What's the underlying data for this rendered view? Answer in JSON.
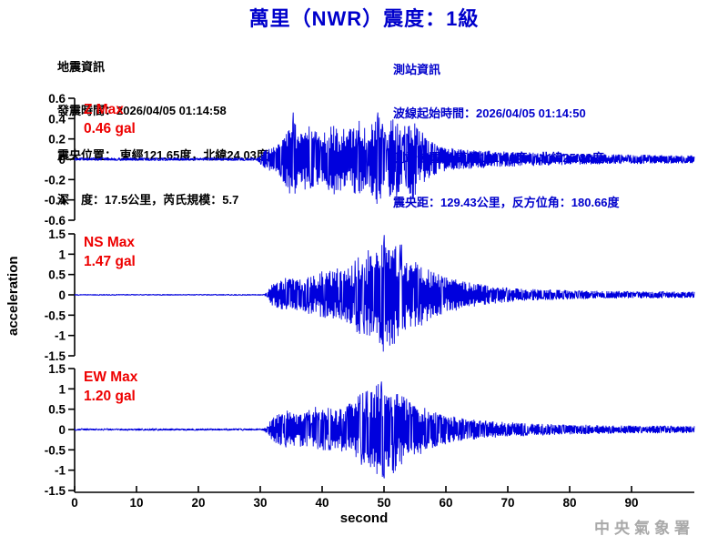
{
  "title": "萬里（NWR）震度：1級",
  "earthquake_info": {
    "heading": "地震資訊",
    "origin_time": "發震時間：2026/04/05 01:14:58",
    "epicenter": "震央位置： 東經121.65度，北緯24.03度",
    "depth_magnitude": "深　度：17.5公里，芮氏規模：5.7"
  },
  "station_info": {
    "heading": "測站資訊",
    "wave_start_time": "波線起始時間：2026/04/05 01:14:50",
    "station_location": "測站位置： 東經121.66度，北緯25.20度",
    "epicentral_distance": "震央距：129.43公里，反方位角：180.66度"
  },
  "watermark": "中央氣象署",
  "colors": {
    "accent_blue": "#0000CC",
    "trace_blue": "#0000DD",
    "label_red": "#EE0000",
    "axis_black": "#000000",
    "watermark_gray": "#A9A9A9"
  },
  "chart_data": {
    "type": "line",
    "title": "萬里（NWR）震度：1級",
    "xlabel": "second",
    "ylabel": "acceleration",
    "x_range": [
      0,
      100
    ],
    "x_ticks": [
      0,
      10,
      20,
      30,
      40,
      50,
      60,
      70,
      80,
      90
    ],
    "grid": false,
    "panels": [
      {
        "channel": "Z",
        "max_label": "Z Max",
        "max_value": "0.46 gal",
        "peak_gal": 0.46,
        "ylim": [
          -0.6,
          0.6
        ],
        "y_ticks": [
          0.6,
          0.4,
          0.2,
          0,
          -0.2,
          -0.4,
          -0.6
        ],
        "onset_s": 30,
        "forced_peaks": [
          [
            35.3,
            1
          ],
          [
            49,
            1
          ],
          [
            52,
            -1
          ]
        ],
        "envelope": [
          [
            0,
            0.015
          ],
          [
            29.5,
            0.015
          ],
          [
            30,
            0.05
          ],
          [
            31,
            0.1
          ],
          [
            33,
            0.15
          ],
          [
            34.5,
            0.3
          ],
          [
            35.3,
            0.46
          ],
          [
            36,
            0.25
          ],
          [
            38,
            0.33
          ],
          [
            40,
            0.25
          ],
          [
            42,
            0.35
          ],
          [
            44,
            0.28
          ],
          [
            46,
            0.38
          ],
          [
            47.5,
            0.3
          ],
          [
            49,
            0.46
          ],
          [
            50,
            0.32
          ],
          [
            51.5,
            0.4
          ],
          [
            53,
            0.3
          ],
          [
            54.5,
            0.42
          ],
          [
            56,
            0.28
          ],
          [
            57.5,
            0.18
          ],
          [
            59,
            0.13
          ],
          [
            62,
            0.1
          ],
          [
            66,
            0.09
          ],
          [
            70,
            0.075
          ],
          [
            75,
            0.065
          ],
          [
            80,
            0.055
          ],
          [
            86,
            0.05
          ],
          [
            93,
            0.045
          ],
          [
            100,
            0.04
          ]
        ]
      },
      {
        "channel": "NS",
        "max_label": "NS Max",
        "max_value": "1.47 gal",
        "peak_gal": 1.47,
        "ylim": [
          -1.5,
          1.5
        ],
        "y_ticks": [
          1.5,
          1,
          0.5,
          0,
          -0.5,
          -1,
          -1.5
        ],
        "onset_s": 31,
        "forced_peaks": [
          [
            50,
            1
          ],
          [
            50.9,
            -1
          ]
        ],
        "envelope": [
          [
            0,
            0.015
          ],
          [
            30.5,
            0.015
          ],
          [
            31,
            0.06
          ],
          [
            31.5,
            0.18
          ],
          [
            32,
            0.3
          ],
          [
            33,
            0.35
          ],
          [
            34,
            0.42
          ],
          [
            35,
            0.38
          ],
          [
            36,
            0.45
          ],
          [
            37,
            0.4
          ],
          [
            38,
            0.5
          ],
          [
            39,
            0.45
          ],
          [
            40,
            0.6
          ],
          [
            41,
            0.55
          ],
          [
            42,
            0.7
          ],
          [
            43,
            0.6
          ],
          [
            44,
            0.68
          ],
          [
            45,
            0.75
          ],
          [
            46,
            1.05
          ],
          [
            46.5,
            0.9
          ],
          [
            47,
            1.1
          ],
          [
            48,
            1.3
          ],
          [
            48.5,
            1.05
          ],
          [
            49,
            1.2
          ],
          [
            50,
            1.47
          ],
          [
            50.6,
            1.1
          ],
          [
            51.2,
            1.4
          ],
          [
            52,
            1.2
          ],
          [
            52.8,
            1.35
          ],
          [
            53.5,
            0.95
          ],
          [
            54.5,
            0.8
          ],
          [
            55.5,
            0.88
          ],
          [
            56.5,
            0.7
          ],
          [
            57.5,
            0.6
          ],
          [
            58.5,
            0.52
          ],
          [
            60,
            0.45
          ],
          [
            61.5,
            0.4
          ],
          [
            63,
            0.33
          ],
          [
            65,
            0.28
          ],
          [
            67,
            0.23
          ],
          [
            69,
            0.2
          ],
          [
            72,
            0.16
          ],
          [
            75,
            0.14
          ],
          [
            79,
            0.12
          ],
          [
            84,
            0.1
          ],
          [
            90,
            0.09
          ],
          [
            100,
            0.08
          ]
        ]
      },
      {
        "channel": "EW",
        "max_label": "EW Max",
        "max_value": "1.20 gal",
        "peak_gal": 1.2,
        "ylim": [
          -1.5,
          1.5
        ],
        "y_ticks": [
          1.5,
          1,
          0.5,
          0,
          -0.5,
          -1,
          -1.5
        ],
        "onset_s": 31,
        "forced_peaks": [
          [
            49.6,
            1
          ],
          [
            50,
            -1
          ]
        ],
        "envelope": [
          [
            0,
            0.025
          ],
          [
            30.5,
            0.025
          ],
          [
            31,
            0.1
          ],
          [
            32,
            0.28
          ],
          [
            33,
            0.4
          ],
          [
            34,
            0.45
          ],
          [
            35,
            0.5
          ],
          [
            36,
            0.42
          ],
          [
            37,
            0.52
          ],
          [
            38,
            0.48
          ],
          [
            39,
            0.58
          ],
          [
            40,
            0.5
          ],
          [
            41,
            0.55
          ],
          [
            42,
            0.48
          ],
          [
            43,
            0.55
          ],
          [
            44,
            0.6
          ],
          [
            45,
            0.7
          ],
          [
            46,
            0.85
          ],
          [
            47,
            0.95
          ],
          [
            48,
            1.05
          ],
          [
            49,
            1.15
          ],
          [
            50,
            1.2
          ],
          [
            50.8,
            1.0
          ],
          [
            51.6,
            1.1
          ],
          [
            52.4,
            0.9
          ],
          [
            53.2,
            0.95
          ],
          [
            54,
            0.75
          ],
          [
            55,
            0.68
          ],
          [
            56,
            0.6
          ],
          [
            57,
            0.52
          ],
          [
            58,
            0.45
          ],
          [
            59.5,
            0.4
          ],
          [
            61,
            0.33
          ],
          [
            63,
            0.28
          ],
          [
            65,
            0.24
          ],
          [
            68,
            0.2
          ],
          [
            71,
            0.17
          ],
          [
            75,
            0.145
          ],
          [
            80,
            0.125
          ],
          [
            85,
            0.11
          ],
          [
            90,
            0.1
          ],
          [
            100,
            0.09
          ]
        ]
      }
    ]
  }
}
